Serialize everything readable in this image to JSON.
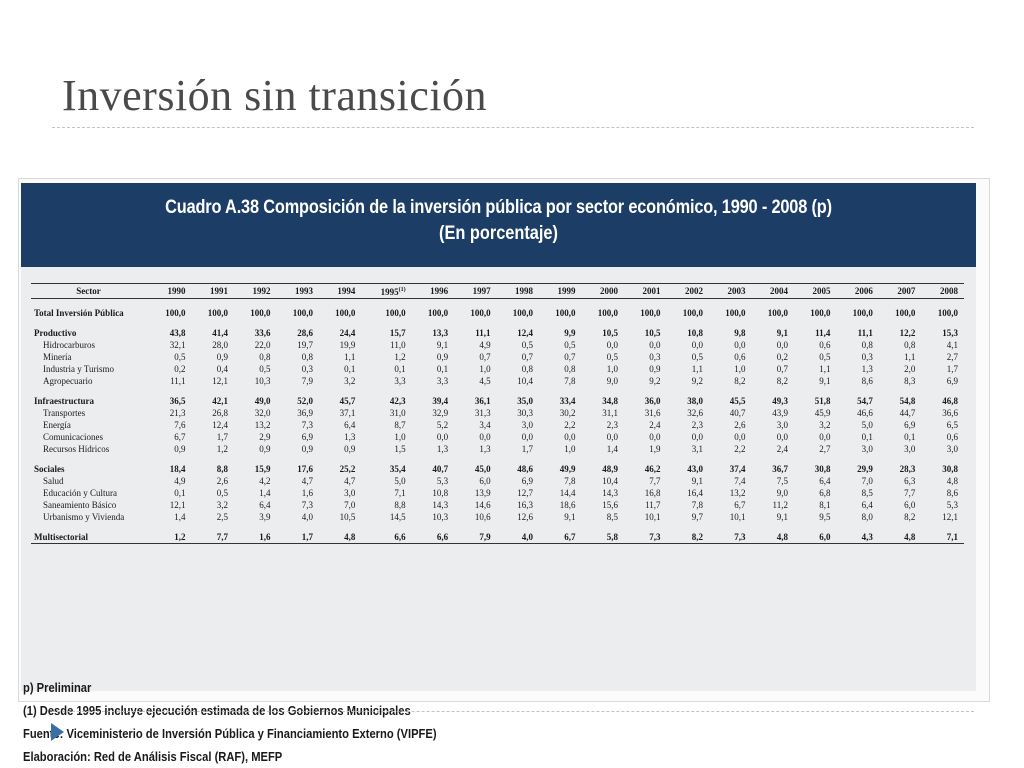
{
  "slide": {
    "title": "Inversión sin transición"
  },
  "figure": {
    "title_line1": "Cuadro A.38 Composición de la inversión pública por sector económico, 1990 - 2008 (p)",
    "title_line2": "(En porcentaje)",
    "header": {
      "sector": "Sector",
      "years": [
        "1990",
        "1991",
        "1992",
        "1993",
        "1994",
        "1995",
        "1996",
        "1997",
        "1998",
        "1999",
        "2000",
        "2001",
        "2002",
        "2003",
        "2004",
        "2005",
        "2006",
        "2007",
        "2008"
      ],
      "footnote_marker": "(1)"
    },
    "rows": [
      {
        "label": "Total Inversión Pública",
        "values": [
          "100,0",
          "100,0",
          "100,0",
          "100,0",
          "100,0",
          "100,0",
          "100,0",
          "100,0",
          "100,0",
          "100,0",
          "100,0",
          "100,0",
          "100,0",
          "100,0",
          "100,0",
          "100,0",
          "100,0",
          "100,0",
          "100,0"
        ]
      },
      {
        "label": "Productivo",
        "values": [
          "43,8",
          "41,4",
          "33,6",
          "28,6",
          "24,4",
          "15,7",
          "13,3",
          "11,1",
          "12,4",
          "9,9",
          "10,5",
          "10,5",
          "10,8",
          "9,8",
          "9,1",
          "11,4",
          "11,1",
          "12,2",
          "15,3"
        ]
      },
      {
        "label": "Hidrocarburos",
        "values": [
          "32,1",
          "28,0",
          "22,0",
          "19,7",
          "19,9",
          "11,0",
          "9,1",
          "4,9",
          "0,5",
          "0,5",
          "0,0",
          "0,0",
          "0,0",
          "0,0",
          "0,0",
          "0,6",
          "0,8",
          "0,8",
          "4,1"
        ]
      },
      {
        "label": "Minería",
        "values": [
          "0,5",
          "0,9",
          "0,8",
          "0,8",
          "1,1",
          "1,2",
          "0,9",
          "0,7",
          "0,7",
          "0,7",
          "0,5",
          "0,3",
          "0,5",
          "0,6",
          "0,2",
          "0,5",
          "0,3",
          "1,1",
          "2,7"
        ]
      },
      {
        "label": "Industria y Turismo",
        "values": [
          "0,2",
          "0,4",
          "0,5",
          "0,3",
          "0,1",
          "0,1",
          "0,1",
          "1,0",
          "0,8",
          "0,8",
          "1,0",
          "0,9",
          "1,1",
          "1,0",
          "0,7",
          "1,1",
          "1,3",
          "2,0",
          "1,7"
        ]
      },
      {
        "label": "Agropecuario",
        "values": [
          "11,1",
          "12,1",
          "10,3",
          "7,9",
          "3,2",
          "3,3",
          "3,3",
          "4,5",
          "10,4",
          "7,8",
          "9,0",
          "9,2",
          "9,2",
          "8,2",
          "8,2",
          "9,1",
          "8,6",
          "8,3",
          "6,9"
        ]
      },
      {
        "label": "Infraestructura",
        "values": [
          "36,5",
          "42,1",
          "49,0",
          "52,0",
          "45,7",
          "42,3",
          "39,4",
          "36,1",
          "35,0",
          "33,4",
          "34,8",
          "36,0",
          "38,0",
          "45,5",
          "49,3",
          "51,8",
          "54,7",
          "54,8",
          "46,8"
        ]
      },
      {
        "label": "Transportes",
        "values": [
          "21,3",
          "26,8",
          "32,0",
          "36,9",
          "37,1",
          "31,0",
          "32,9",
          "31,3",
          "30,3",
          "30,2",
          "31,1",
          "31,6",
          "32,6",
          "40,7",
          "43,9",
          "45,9",
          "46,6",
          "44,7",
          "36,6"
        ]
      },
      {
        "label": "Energía",
        "values": [
          "7,6",
          "12,4",
          "13,2",
          "7,3",
          "6,4",
          "8,7",
          "5,2",
          "3,4",
          "3,0",
          "2,2",
          "2,3",
          "2,4",
          "2,3",
          "2,6",
          "3,0",
          "3,2",
          "5,0",
          "6,9",
          "6,5"
        ]
      },
      {
        "label": "Comunicaciones",
        "values": [
          "6,7",
          "1,7",
          "2,9",
          "6,9",
          "1,3",
          "1,0",
          "0,0",
          "0,0",
          "0,0",
          "0,0",
          "0,0",
          "0,0",
          "0,0",
          "0,0",
          "0,0",
          "0,0",
          "0,1",
          "0,1",
          "0,6"
        ]
      },
      {
        "label": "Recursos Hídricos",
        "values": [
          "0,9",
          "1,2",
          "0,9",
          "0,9",
          "0,9",
          "1,5",
          "1,3",
          "1,3",
          "1,7",
          "1,0",
          "1,4",
          "1,9",
          "3,1",
          "2,2",
          "2,4",
          "2,7",
          "3,0",
          "3,0",
          "3,0"
        ]
      },
      {
        "label": "Sociales",
        "values": [
          "18,4",
          "8,8",
          "15,9",
          "17,6",
          "25,2",
          "35,4",
          "40,7",
          "45,0",
          "48,6",
          "49,9",
          "48,9",
          "46,2",
          "43,0",
          "37,4",
          "36,7",
          "30,8",
          "29,9",
          "28,3",
          "30,8"
        ]
      },
      {
        "label": "Salud",
        "values": [
          "4,9",
          "2,6",
          "4,2",
          "4,7",
          "4,7",
          "5,0",
          "5,3",
          "6,0",
          "6,9",
          "7,8",
          "10,4",
          "7,7",
          "9,1",
          "7,4",
          "7,5",
          "6,4",
          "7,0",
          "6,3",
          "4,8"
        ]
      },
      {
        "label": "Educación y Cultura",
        "values": [
          "0,1",
          "0,5",
          "1,4",
          "1,6",
          "3,0",
          "7,1",
          "10,8",
          "13,9",
          "12,7",
          "14,4",
          "14,3",
          "16,8",
          "16,4",
          "13,2",
          "9,0",
          "6,8",
          "8,5",
          "7,7",
          "8,6"
        ]
      },
      {
        "label": "Saneamiento Básico",
        "values": [
          "12,1",
          "3,2",
          "6,4",
          "7,3",
          "7,0",
          "8,8",
          "14,3",
          "14,6",
          "16,3",
          "18,6",
          "15,6",
          "11,7",
          "7,8",
          "6,7",
          "11,2",
          "8,1",
          "6,4",
          "6,0",
          "5,3"
        ]
      },
      {
        "label": "Urbanismo y Vivienda",
        "values": [
          "1,4",
          "2,5",
          "3,9",
          "4,0",
          "10,5",
          "14,5",
          "10,3",
          "10,6",
          "12,6",
          "9,1",
          "8,5",
          "10,1",
          "9,7",
          "10,1",
          "9,1",
          "9,5",
          "8,0",
          "8,2",
          "12,1"
        ]
      },
      {
        "label": "Multisectorial",
        "values": [
          "1,2",
          "7,7",
          "1,6",
          "1,7",
          "4,8",
          "6,6",
          "6,6",
          "7,9",
          "4,0",
          "6,7",
          "5,8",
          "7,3",
          "8,2",
          "7,3",
          "4,8",
          "6,0",
          "4,3",
          "4,8",
          "7,1"
        ]
      }
    ],
    "notes": [
      "p) Preliminar",
      "(1) Desde 1995 incluye ejecución estimada de los Gobiernos Municipales",
      "Fuente: Viceministerio de Inversión Pública y Financiamiento Externo (VIPFE)",
      "Elaboración: Red de Análisis Fiscal (RAF), MEFP"
    ]
  },
  "icons": {
    "bullet": "triangle-right-icon",
    "bullet_color": "#3a6ea5",
    "banner_color": "#1c3d66"
  }
}
